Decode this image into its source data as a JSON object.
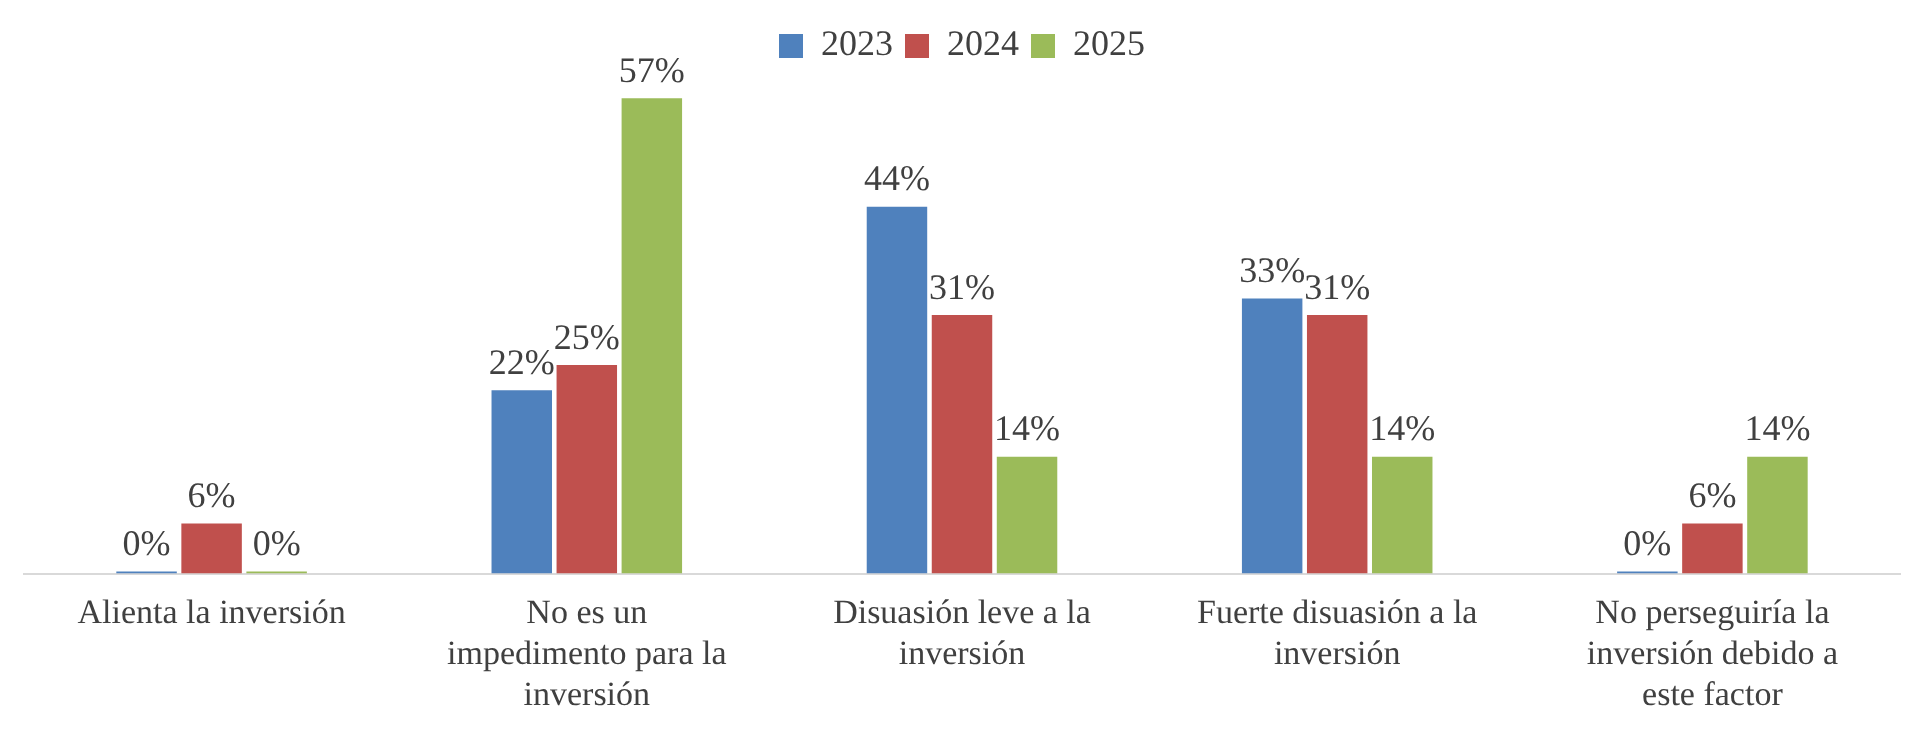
{
  "chart_data": {
    "type": "bar",
    "categories": [
      "Alienta la inversión",
      "No es un impedimento para la inversión",
      "Disuasión leve a la inversión",
      "Fuerte disuasión a la inversión",
      "No perseguiría la inversión debido a este factor"
    ],
    "series": [
      {
        "name": "2023",
        "color": "#4f81bd",
        "values": [
          0,
          22,
          44,
          33,
          0
        ],
        "value_labels": [
          "0%",
          "22%",
          "44%",
          "33%",
          "0%"
        ]
      },
      {
        "name": "2024",
        "color": "#c0504d",
        "values": [
          6,
          25,
          31,
          31,
          6
        ],
        "value_labels": [
          "6%",
          "25%",
          "31%",
          "31%",
          "6%"
        ]
      },
      {
        "name": "2025",
        "color": "#9bbb59",
        "values": [
          0,
          57,
          14,
          14,
          14
        ],
        "value_labels": [
          "0%",
          "57%",
          "14%",
          "14%",
          "14%"
        ]
      }
    ],
    "grid": false,
    "legend": "top"
  }
}
